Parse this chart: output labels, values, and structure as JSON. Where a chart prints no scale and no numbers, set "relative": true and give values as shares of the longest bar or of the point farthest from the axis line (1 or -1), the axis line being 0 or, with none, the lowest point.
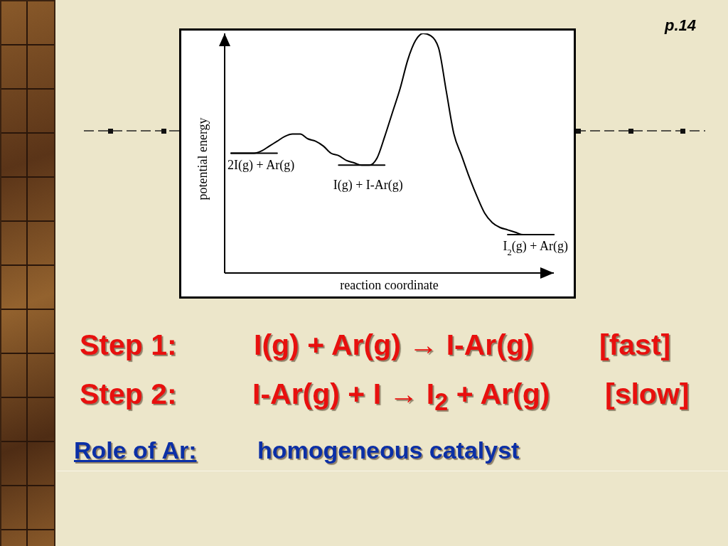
{
  "chart_data": {
    "type": "line",
    "relative": true,
    "xlabel": "reaction coordinate",
    "ylabel": "potential energy",
    "marker": "none",
    "categories": [
      null,
      null,
      null,
      null,
      null,
      null,
      null,
      null,
      null,
      null,
      null,
      null,
      null,
      null,
      null,
      null,
      null,
      null,
      null,
      null,
      null,
      null,
      null,
      null,
      null,
      null,
      null,
      null,
      null,
      null,
      null,
      null,
      null,
      null,
      null,
      null,
      null,
      null,
      null,
      null,
      null,
      null,
      null
    ],
    "series": [
      {
        "color": "#000000",
        "values": [
          0.5,
          0.5,
          0.5,
          0.5,
          0.51,
          0.53,
          0.55,
          0.57,
          0.58,
          0.58,
          0.56,
          0.55,
          0.53,
          0.5,
          0.49,
          0.47,
          0.46,
          0.45,
          0.45,
          0.48,
          0.57,
          0.67,
          0.77,
          0.89,
          0.97,
          1.0,
          0.99,
          0.94,
          0.76,
          0.58,
          0.49,
          0.4,
          0.32,
          0.25,
          0.21,
          0.19,
          0.18,
          0.17,
          0.16,
          0.16,
          0.16,
          0.16,
          0.16
        ]
      },
      {
        "name": "2I(g) + Ar(g)",
        "color": "#000000",
        "values": [
          0.5,
          0.5,
          0.5,
          0.5,
          0.5,
          0.5,
          0.5,
          null,
          null,
          null,
          null,
          null,
          null,
          null,
          null,
          null,
          null,
          null,
          null,
          null,
          null,
          null,
          null,
          null,
          null,
          null,
          null,
          null,
          null,
          null,
          null,
          null,
          null,
          null,
          null,
          null,
          null,
          null,
          null,
          null,
          null,
          null,
          null
        ]
      },
      {
        "name": "I(g) + I-Ar(g)",
        "color": "#000000",
        "values": [
          null,
          null,
          null,
          null,
          null,
          null,
          null,
          null,
          null,
          null,
          null,
          null,
          null,
          null,
          0.45,
          0.45,
          0.45,
          0.45,
          0.45,
          0.45,
          0.45,
          null,
          null,
          null,
          null,
          null,
          null,
          null,
          null,
          null,
          null,
          null,
          null,
          null,
          null,
          null,
          null,
          null,
          null,
          null,
          null,
          null,
          null
        ]
      },
      {
        "name": "I$_{2}$(g) + Ar(g)",
        "color": "#000000",
        "values": [
          null,
          null,
          null,
          null,
          null,
          null,
          null,
          null,
          null,
          null,
          null,
          null,
          null,
          null,
          null,
          null,
          null,
          null,
          null,
          null,
          null,
          null,
          null,
          null,
          null,
          null,
          null,
          null,
          null,
          null,
          null,
          null,
          null,
          null,
          null,
          null,
          0.16,
          0.16,
          0.16,
          0.16,
          0.16,
          0.16,
          0.16
        ]
      }
    ],
    "annotations": [
      "p.14",
      "Step 1:",
      "I(g) + Ar(g) → I-Ar(g)",
      "[fast]",
      "Step 2:",
      "I-Ar(g) + I → I$_{2}$ + Ar(g)",
      "[slow]",
      "Role of Ar:",
      "homogeneous catalyst"
    ]
  }
}
